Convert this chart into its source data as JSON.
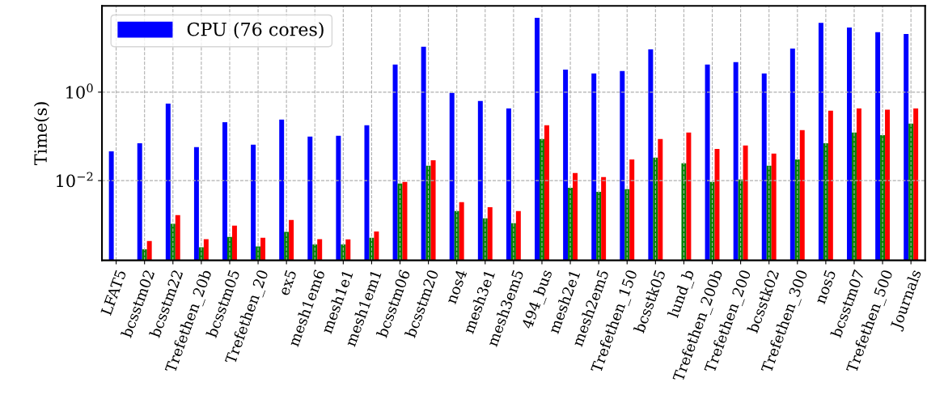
{
  "chart_data": {
    "type": "bar",
    "ylabel": "Time(s)",
    "categories": [
      "LFAT5",
      "bcsstm02",
      "bcsstm22",
      "Trefethen_20b",
      "bcsstm05",
      "Trefethen_20",
      "ex5",
      "mesh1em6",
      "mesh1e1",
      "mesh1em1",
      "bcsstm06",
      "bcsstm20",
      "nos4",
      "mesh3e1",
      "mesh3em5",
      "494_bus",
      "mesh2e1",
      "mesh2em5",
      "Trefethen_150",
      "bcsstk05",
      "lund_b",
      "Trefethen_200b",
      "Trefethen_200",
      "bcsstk02",
      "Trefethen_300",
      "nos5",
      "bcsstm07",
      "Trefethen_500",
      "Journals"
    ],
    "series": [
      {
        "name": "CPU (76 cores)",
        "color": "#0000ff",
        "values": [
          0.046,
          0.07,
          0.55,
          0.057,
          0.21,
          0.065,
          0.24,
          0.099,
          0.103,
          0.178,
          4.2,
          10.6,
          0.96,
          0.63,
          0.43,
          48,
          3.25,
          2.64,
          3.0,
          9.3,
          null,
          4.2,
          4.75,
          2.64,
          9.7,
          37,
          29,
          22.6,
          20.7
        ]
      },
      {
        "color": "#008000",
        "values": [
          null,
          0.00028,
          0.00106,
          0.00031,
          0.00053,
          0.000325,
          0.00069,
          0.00036,
          0.00036,
          0.00051,
          0.0086,
          0.0216,
          0.00205,
          0.0014,
          0.00109,
          0.087,
          0.0069,
          0.0056,
          0.0064,
          0.033,
          0.0246,
          0.0093,
          0.0106,
          0.0216,
          0.03,
          0.07,
          0.122,
          0.107,
          0.194
        ]
      },
      {
        "color": "#ff0000",
        "values": [
          null,
          0.00043,
          0.00166,
          0.000475,
          0.00096,
          0.00051,
          0.00129,
          0.000475,
          0.00047,
          0.00071,
          0.0093,
          0.029,
          0.00325,
          0.0025,
          0.00205,
          0.178,
          0.0148,
          0.012,
          0.03,
          0.087,
          0.122,
          0.052,
          0.062,
          0.041,
          0.138,
          0.38,
          0.43,
          0.4,
          0.43
        ]
      }
    ],
    "log": true,
    "ylim": [
      0.000158,
      89
    ],
    "yticks": [
      {
        "value": 0.01,
        "label": "10$^{−2}$"
      },
      {
        "value": 1,
        "label": "10$^{0}$"
      }
    ],
    "grid": true,
    "legend": "top left"
  }
}
